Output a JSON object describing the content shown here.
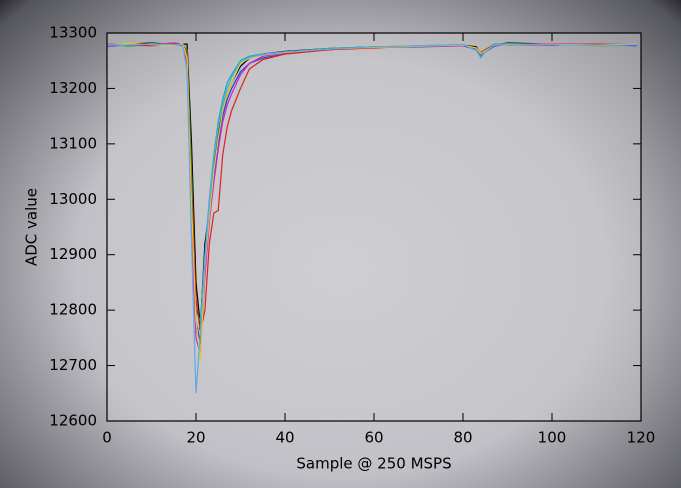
{
  "chart_data": {
    "type": "line",
    "xlabel": "Sample @ 250 MSPS",
    "ylabel": "ADC value",
    "x": [
      0,
      5,
      10,
      15,
      17,
      18,
      19,
      20,
      21,
      22,
      23,
      24,
      25,
      26,
      27,
      28,
      30,
      32,
      35,
      40,
      50,
      60,
      70,
      80,
      83,
      84,
      85,
      87,
      90,
      100,
      110,
      119
    ],
    "series": [
      {
        "color": "#000000",
        "values": [
          13278,
          13280,
          13282,
          13279,
          13280,
          13280,
          13100,
          12850,
          12770,
          12920,
          12980,
          13060,
          13120,
          13160,
          13190,
          13210,
          13240,
          13255,
          13262,
          13267,
          13272,
          13275,
          13276,
          13278,
          13275,
          13262,
          13268,
          13278,
          13282,
          13280,
          13279,
          13278
        ]
      },
      {
        "color": "#20b030",
        "values": [
          13280,
          13276,
          13280,
          13281,
          13278,
          13270,
          13050,
          12800,
          12780,
          12900,
          12990,
          13070,
          13130,
          13170,
          13200,
          13220,
          13250,
          13258,
          13262,
          13265,
          13272,
          13275,
          13276,
          13278,
          13272,
          13265,
          13270,
          13280,
          13278,
          13280,
          13277,
          13278
        ]
      },
      {
        "color": "#2040e0",
        "values": [
          13276,
          13279,
          13278,
          13280,
          13277,
          13260,
          13000,
          12780,
          12740,
          12880,
          12960,
          13040,
          13100,
          13150,
          13180,
          13200,
          13230,
          13245,
          13255,
          13262,
          13270,
          13274,
          13275,
          13277,
          13270,
          13258,
          13266,
          13276,
          13280,
          13278,
          13280,
          13277
        ]
      },
      {
        "color": "#10b0b0",
        "values": [
          13279,
          13277,
          13281,
          13278,
          13279,
          13250,
          12980,
          12760,
          12770,
          12900,
          13000,
          13080,
          13140,
          13180,
          13210,
          13225,
          13250,
          13258,
          13262,
          13266,
          13272,
          13275,
          13277,
          13279,
          13270,
          13260,
          13268,
          13279,
          13281,
          13279,
          13278,
          13279
        ]
      },
      {
        "color": "#d020d0",
        "values": [
          13277,
          13280,
          13279,
          13282,
          13280,
          13240,
          12950,
          12750,
          12720,
          12860,
          12960,
          13030,
          13090,
          13140,
          13170,
          13190,
          13225,
          13245,
          13258,
          13264,
          13270,
          13274,
          13276,
          13277,
          13272,
          13262,
          13268,
          13277,
          13279,
          13281,
          13279,
          13278
        ]
      },
      {
        "color": "#e02020",
        "values": [
          13280,
          13278,
          13277,
          13280,
          13279,
          13265,
          13020,
          12820,
          12760,
          12800,
          12920,
          12975,
          12980,
          13080,
          13130,
          13160,
          13200,
          13235,
          13252,
          13262,
          13270,
          13273,
          13276,
          13278,
          13273,
          13264,
          13270,
          13278,
          13280,
          13278,
          13280,
          13279
        ]
      },
      {
        "color": "#e0d020",
        "values": [
          13278,
          13281,
          13279,
          13277,
          13281,
          13255,
          12990,
          12780,
          12710,
          12880,
          12970,
          13050,
          13110,
          13160,
          13190,
          13210,
          13245,
          13255,
          13260,
          13265,
          13271,
          13274,
          13276,
          13278,
          13273,
          13263,
          13268,
          13278,
          13279,
          13280,
          13278,
          13280
        ]
      },
      {
        "color": "#60a8e8",
        "values": [
          13279,
          13278,
          13280,
          13279,
          13278,
          13230,
          12920,
          12650,
          12760,
          12890,
          12990,
          13070,
          13130,
          13170,
          13200,
          13220,
          13248,
          13256,
          13261,
          13266,
          13271,
          13275,
          13277,
          13279,
          13268,
          13255,
          13266,
          13278,
          13280,
          13279,
          13277,
          13279
        ]
      }
    ],
    "xlim": [
      0,
      120
    ],
    "ylim": [
      12600,
      13300
    ],
    "xticks": [
      0,
      20,
      40,
      60,
      80,
      100,
      120
    ],
    "yticks": [
      12600,
      12700,
      12800,
      12900,
      13000,
      13100,
      13200,
      13300
    ]
  }
}
